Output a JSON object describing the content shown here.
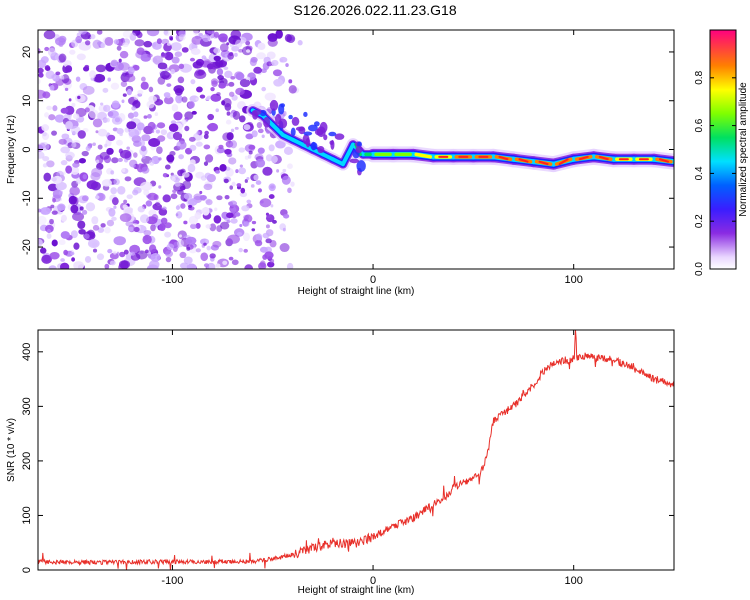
{
  "title": "S126.2026.022.11.23.G18",
  "chart_data": [
    {
      "type": "heatmap",
      "name": "spectrogram",
      "xlabel": "Height of straight line (km)",
      "ylabel": "Frequency (Hz)",
      "xlim": [
        -167,
        150
      ],
      "ylim": [
        -24.5,
        24.5
      ],
      "xticks": [
        -100,
        0,
        100
      ],
      "yticks": [
        -20,
        -10,
        0,
        10,
        20
      ],
      "colorbar": {
        "label": "Normalized spectral amplitude",
        "range": [
          0,
          1
        ],
        "ticks": [
          0.0,
          0.2,
          0.4,
          0.6,
          0.8
        ]
      },
      "noise_region_x": [
        -167,
        -60
      ],
      "signal_track": {
        "x": [
          -60,
          -55,
          -50,
          -45,
          -40,
          -35,
          -30,
          -25,
          -20,
          -15,
          -10,
          -5,
          0,
          10,
          20,
          30,
          40,
          50,
          60,
          70,
          80,
          90,
          100,
          110,
          120,
          130,
          140,
          150
        ],
        "freq": [
          8,
          7,
          5,
          3,
          2,
          1,
          0,
          -1,
          -2,
          -3,
          1,
          -1,
          -1,
          -1,
          -1,
          -1.5,
          -1.5,
          -1.5,
          -1.5,
          -2,
          -2.5,
          -3,
          -2,
          -1.5,
          -2,
          -2,
          -2,
          -2.5
        ],
        "amp": [
          0.4,
          0.35,
          0.35,
          0.3,
          0.3,
          0.3,
          0.35,
          0.4,
          0.45,
          0.5,
          0.6,
          0.65,
          0.7,
          0.75,
          0.8,
          0.85,
          0.9,
          0.9,
          0.9,
          0.92,
          0.92,
          0.92,
          0.9,
          0.92,
          0.9,
          0.88,
          0.9,
          0.9
        ]
      }
    },
    {
      "type": "line",
      "name": "snr",
      "xlabel": "Height of straight line (km)",
      "ylabel": "SNR (10 * v/v)",
      "xlim": [
        -167,
        150
      ],
      "ylim": [
        0,
        440
      ],
      "xticks": [
        -100,
        0,
        100
      ],
      "yticks": [
        0,
        100,
        200,
        300,
        400
      ],
      "color": "#e8302a",
      "series": [
        {
          "name": "SNR",
          "x": [
            -167,
            -140,
            -110,
            -80,
            -60,
            -50,
            -40,
            -30,
            -20,
            -10,
            0,
            10,
            20,
            30,
            38,
            40,
            50,
            55,
            58,
            60,
            62,
            70,
            75,
            80,
            85,
            90,
            95,
            100,
            101,
            102,
            110,
            120,
            130,
            140,
            150
          ],
          "y": [
            15,
            14,
            15,
            15,
            16,
            20,
            28,
            40,
            50,
            48,
            60,
            80,
            95,
            120,
            140,
            150,
            170,
            185,
            230,
            275,
            280,
            300,
            320,
            340,
            365,
            380,
            385,
            385,
            440,
            395,
            390,
            385,
            370,
            350,
            340
          ]
        }
      ]
    }
  ]
}
